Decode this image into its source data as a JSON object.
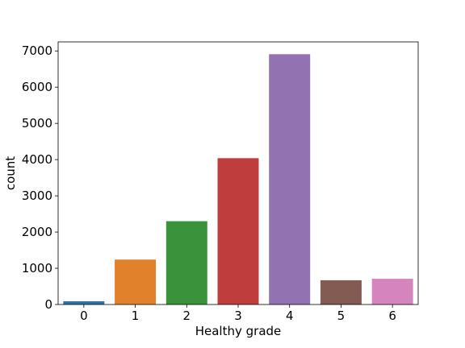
{
  "chart_data": {
    "type": "bar",
    "categories": [
      "0",
      "1",
      "2",
      "3",
      "4",
      "5",
      "6"
    ],
    "values": [
      90,
      1240,
      2300,
      4040,
      6910,
      670,
      710
    ],
    "colors": [
      "#3274a1",
      "#e1812c",
      "#3a923a",
      "#c03d3e",
      "#9372b2",
      "#845b53",
      "#d684bd"
    ],
    "xlabel": "Healthy grade",
    "ylabel": "count",
    "ylim": [
      0,
      7250
    ],
    "yticks": [
      0,
      1000,
      2000,
      3000,
      4000,
      5000,
      6000,
      7000
    ],
    "ytick_labels": [
      "0",
      "1000",
      "2000",
      "3000",
      "4000",
      "5000",
      "6000",
      "7000"
    ],
    "grid": false
  }
}
